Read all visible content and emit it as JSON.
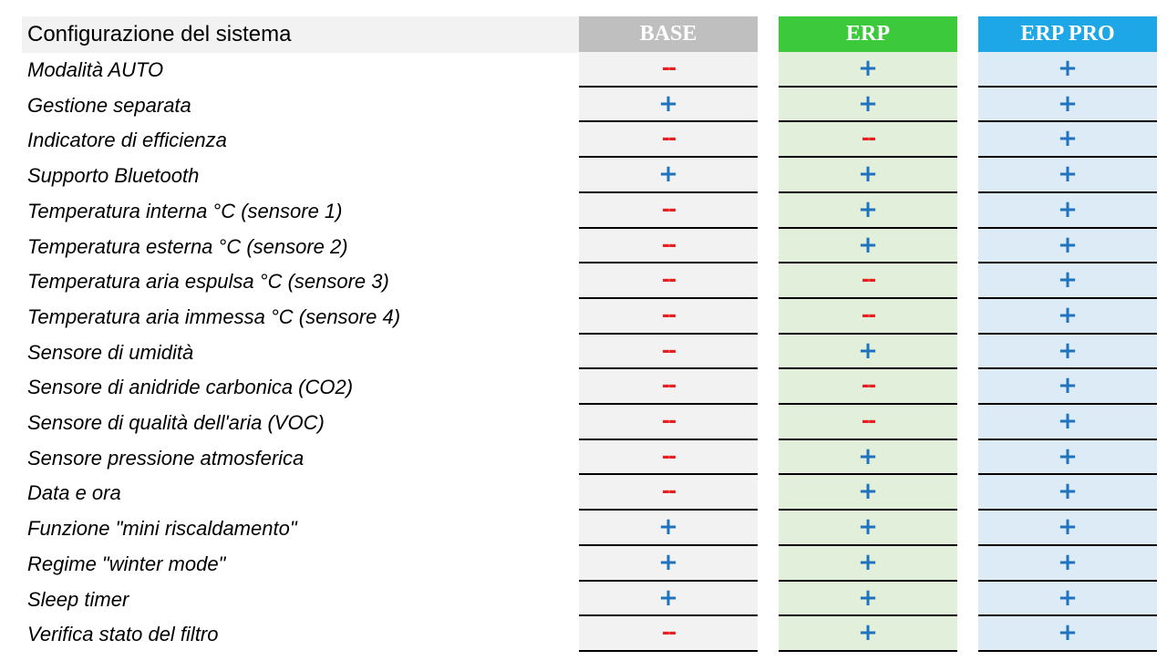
{
  "title": "Configurazione del sistema",
  "columns": [
    {
      "label": "BASE",
      "header_color": "#bfbfbf",
      "cell_color": "#f2f2f2"
    },
    {
      "label": "ERP",
      "header_color": "#3cc93c",
      "cell_color": "#e2efda"
    },
    {
      "label": "ERP PRO",
      "header_color": "#1ea7e6",
      "cell_color": "#ddebf7"
    }
  ],
  "symbols": {
    "yes": "+",
    "no": "--"
  },
  "colors": {
    "yes": "#1f73bf",
    "no": "#e81d1d"
  },
  "rows": [
    {
      "label": "Modalità AUTO",
      "values": [
        "no",
        "yes",
        "yes"
      ]
    },
    {
      "label": "Gestione separata",
      "values": [
        "yes",
        "yes",
        "yes"
      ]
    },
    {
      "label": "Indicatore di efficienza",
      "values": [
        "no",
        "no",
        "yes"
      ]
    },
    {
      "label": "Supporto Bluetooth",
      "values": [
        "yes",
        "yes",
        "yes"
      ]
    },
    {
      "label": "Temperatura interna °C (sensore 1)",
      "values": [
        "no",
        "yes",
        "yes"
      ]
    },
    {
      "label": "Temperatura esterna °C (sensore 2)",
      "values": [
        "no",
        "yes",
        "yes"
      ]
    },
    {
      "label": "Temperatura aria espulsa °C (sensore 3)",
      "values": [
        "no",
        "no",
        "yes"
      ]
    },
    {
      "label": "Temperatura aria immessa °C (sensore 4)",
      "values": [
        "no",
        "no",
        "yes"
      ]
    },
    {
      "label": "Sensore di umidità",
      "values": [
        "no",
        "yes",
        "yes"
      ]
    },
    {
      "label": "Sensore di anidride carbonica (CO2)",
      "values": [
        "no",
        "no",
        "yes"
      ]
    },
    {
      "label": "Sensore di qualità dell'aria (VOC)",
      "values": [
        "no",
        "no",
        "yes"
      ]
    },
    {
      "label": "Sensore pressione atmosferica",
      "values": [
        "no",
        "yes",
        "yes"
      ]
    },
    {
      "label": "Data e ora",
      "values": [
        "no",
        "yes",
        "yes"
      ]
    },
    {
      "label": "Funzione \"mini riscaldamento\"",
      "values": [
        "yes",
        "yes",
        "yes"
      ]
    },
    {
      "label": "Regime \"winter mode\"",
      "values": [
        "yes",
        "yes",
        "yes"
      ]
    },
    {
      "label": "Sleep timer",
      "values": [
        "yes",
        "yes",
        "yes"
      ]
    },
    {
      "label": "Verifica stato del filtro",
      "values": [
        "no",
        "yes",
        "yes"
      ]
    }
  ]
}
